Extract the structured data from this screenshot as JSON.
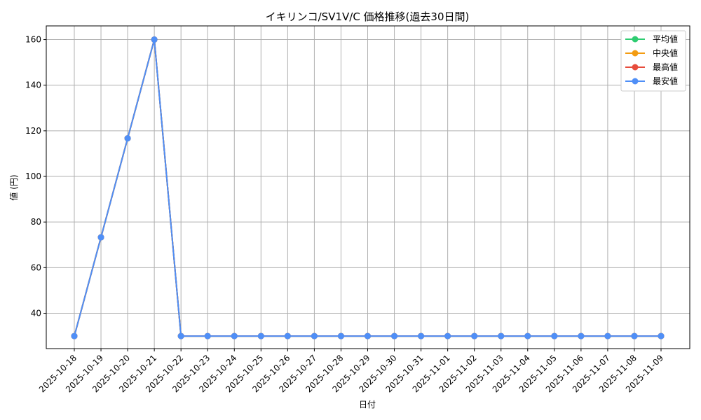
{
  "chart_data": {
    "type": "line",
    "title": "イキリンコ/SV1V/C 価格推移(過去30日間)",
    "xlabel": "日付",
    "ylabel": "値 (円)",
    "x": [
      "2025-10-18",
      "2025-10-19",
      "2025-10-20",
      "2025-10-21",
      "2025-10-22",
      "2025-10-23",
      "2025-10-24",
      "2025-10-25",
      "2025-10-26",
      "2025-10-27",
      "2025-10-28",
      "2025-10-29",
      "2025-10-30",
      "2025-10-31",
      "2025-11-01",
      "2025-11-02",
      "2025-11-03",
      "2025-11-04",
      "2025-11-05",
      "2025-11-06",
      "2025-11-07",
      "2025-11-08",
      "2025-11-09"
    ],
    "yticks": [
      40,
      60,
      80,
      100,
      120,
      140,
      160
    ],
    "ylim": [
      24.5,
      166
    ],
    "grid": true,
    "legend_position": "top-right",
    "series": [
      {
        "name": "平均値",
        "color": "#2ecc71",
        "values": [
          30,
          73.3,
          116.7,
          160,
          30,
          30,
          30,
          30,
          30,
          30,
          30,
          30,
          30,
          30,
          30,
          30,
          30,
          30,
          30,
          30,
          30,
          30,
          30
        ]
      },
      {
        "name": "中央値",
        "color": "#f39c12",
        "values": [
          30,
          73.3,
          116.7,
          160,
          30,
          30,
          30,
          30,
          30,
          30,
          30,
          30,
          30,
          30,
          30,
          30,
          30,
          30,
          30,
          30,
          30,
          30,
          30
        ]
      },
      {
        "name": "最高値",
        "color": "#e74c3c",
        "values": [
          30,
          73.3,
          116.7,
          160,
          30,
          30,
          30,
          30,
          30,
          30,
          30,
          30,
          30,
          30,
          30,
          30,
          30,
          30,
          30,
          30,
          30,
          30,
          30
        ]
      },
      {
        "name": "最安値",
        "color": "#4f8ff7",
        "values": [
          30,
          73.3,
          116.7,
          160,
          30,
          30,
          30,
          30,
          30,
          30,
          30,
          30,
          30,
          30,
          30,
          30,
          30,
          30,
          30,
          30,
          30,
          30,
          30
        ]
      }
    ]
  }
}
